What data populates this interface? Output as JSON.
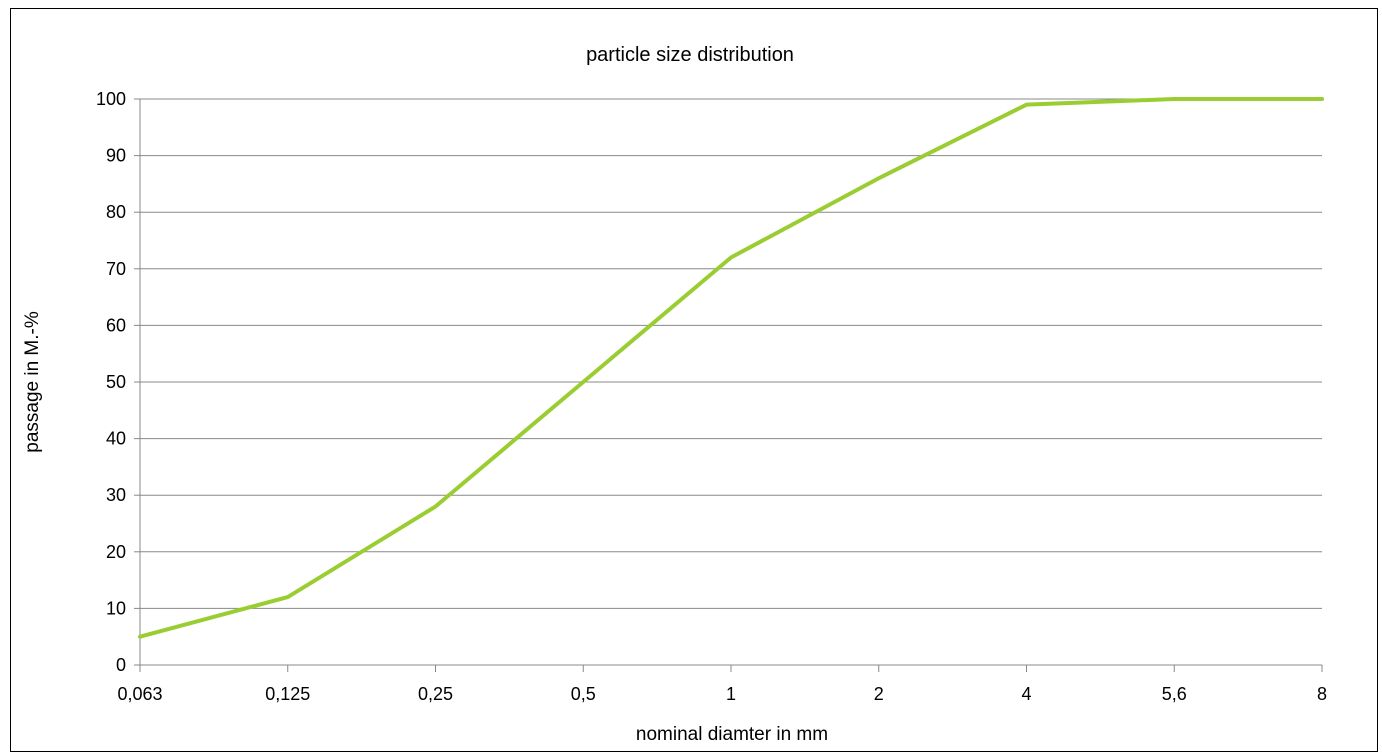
{
  "chart_data": {
    "type": "line",
    "title": "particle size distribution",
    "xlabel": "nominal diamter in mm",
    "ylabel": "passage in M.-%",
    "categories": [
      "0,063",
      "0,125",
      "0,25",
      "0,5",
      "1",
      "2",
      "4",
      "5,6",
      "8"
    ],
    "series": [
      {
        "values": [
          5,
          12,
          28,
          50,
          72,
          86,
          99,
          100,
          100
        ],
        "color": "#9ACD32"
      }
    ],
    "ylim": [
      0,
      100
    ],
    "yticks": [
      0,
      10,
      20,
      30,
      40,
      50,
      60,
      70,
      80,
      90,
      100
    ],
    "grid": "horizontal",
    "legend": "none",
    "colors": {
      "line": "#9ACD32",
      "grid": "#888888",
      "axis": "#888888",
      "text": "#000000"
    }
  }
}
